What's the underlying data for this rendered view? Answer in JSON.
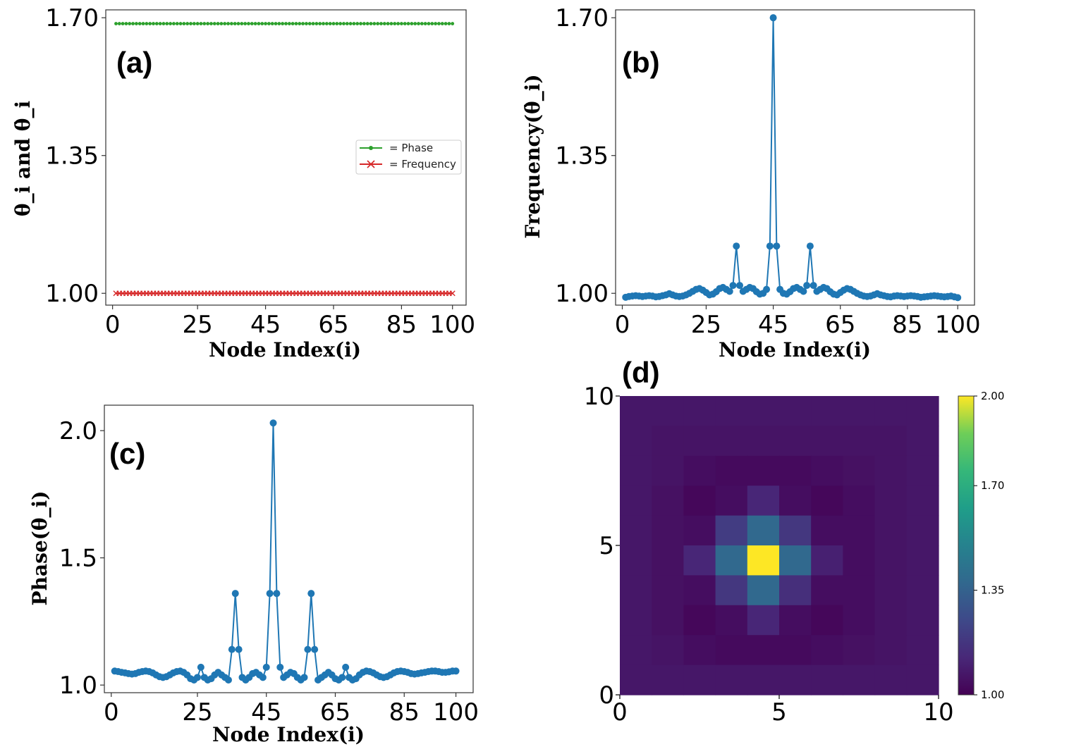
{
  "chart_data": [
    {
      "id": "a",
      "type": "line",
      "panel_label": "(a)",
      "xlabel": "Node Index(i)",
      "ylabel": "θ_i and θ̇_i",
      "xlim": [
        -2,
        104
      ],
      "ylim": [
        0.97,
        1.72
      ],
      "xticks": [
        0,
        25,
        45,
        65,
        85,
        100
      ],
      "xtick_labels": [
        "0",
        "25",
        "45",
        "65",
        "85",
        "100"
      ],
      "yticks": [
        1.0,
        1.35,
        1.7
      ],
      "ytick_labels": [
        "1.00",
        "1.35",
        "1.70"
      ],
      "legend": {
        "placement": "center-right",
        "entries": [
          "= Phase",
          "= Frequency"
        ]
      },
      "series": [
        {
          "name": "Phase",
          "color": "#2ca02c",
          "marker": "dot",
          "x_range": [
            1,
            100
          ],
          "constant_value": 1.685
        },
        {
          "name": "Frequency",
          "color": "#d62728",
          "marker": "x",
          "x_range": [
            1,
            100
          ],
          "constant_value": 1.0
        }
      ]
    },
    {
      "id": "b",
      "type": "line",
      "panel_label": "(b)",
      "xlabel": "Node Index(i)",
      "ylabel": "Frequency(θ̇_i)",
      "xlim": [
        -2,
        105
      ],
      "ylim": [
        0.97,
        1.72
      ],
      "xticks": [
        0,
        25,
        45,
        65,
        85,
        100
      ],
      "xtick_labels": [
        "0",
        "25",
        "45",
        "65",
        "85",
        "100"
      ],
      "yticks": [
        1.0,
        1.35,
        1.7
      ],
      "ytick_labels": [
        "1.00",
        "1.35",
        "1.70"
      ],
      "series": [
        {
          "name": "Frequency",
          "color": "#1f77b4",
          "x_range": [
            1,
            100
          ],
          "values": [
            0.99,
            0.992,
            0.993,
            0.994,
            0.993,
            0.992,
            0.993,
            0.994,
            0.993,
            0.991,
            0.992,
            0.994,
            0.996,
            0.999,
            0.996,
            0.993,
            0.992,
            0.993,
            0.996,
            1.0,
            1.005,
            1.01,
            1.012,
            1.008,
            1.002,
            0.996,
            0.998,
            1.004,
            1.012,
            1.015,
            1.01,
            1.005,
            1.02,
            1.12,
            1.02,
            1.005,
            1.01,
            1.015,
            1.012,
            1.004,
            0.998,
            1.0,
            1.01,
            1.12,
            1.7,
            1.12,
            1.01,
            1.0,
            0.998,
            1.004,
            1.012,
            1.015,
            1.01,
            1.005,
            1.02,
            1.12,
            1.02,
            1.005,
            1.01,
            1.015,
            1.012,
            1.004,
            0.998,
            0.996,
            1.002,
            1.008,
            1.012,
            1.01,
            1.005,
            1.0,
            0.996,
            0.993,
            0.992,
            0.993,
            0.996,
            0.999,
            0.996,
            0.994,
            0.992,
            0.991,
            0.993,
            0.994,
            0.993,
            0.992,
            0.993,
            0.994,
            0.993,
            0.992,
            0.99,
            0.991,
            0.992,
            0.993,
            0.994,
            0.993,
            0.992,
            0.991,
            0.992,
            0.993,
            0.991,
            0.989
          ]
        }
      ]
    },
    {
      "id": "c",
      "type": "line",
      "panel_label": "(c)",
      "xlabel": "Node Index(i)",
      "ylabel": "Phase(θ_i)",
      "xlim": [
        -2,
        105
      ],
      "ylim": [
        0.97,
        2.1
      ],
      "xticks": [
        0,
        25,
        45,
        65,
        85,
        100
      ],
      "xtick_labels": [
        "0",
        "25",
        "45",
        "65",
        "85",
        "100"
      ],
      "yticks": [
        1.0,
        1.5,
        2.0
      ],
      "ytick_labels": [
        "1.0",
        "1.5",
        "2.0"
      ],
      "series": [
        {
          "name": "Phase",
          "color": "#1f77b4",
          "x_range": [
            1,
            100
          ],
          "values": [
            1.055,
            1.053,
            1.05,
            1.048,
            1.045,
            1.043,
            1.045,
            1.05,
            1.053,
            1.055,
            1.053,
            1.048,
            1.04,
            1.033,
            1.03,
            1.033,
            1.04,
            1.048,
            1.053,
            1.055,
            1.05,
            1.04,
            1.025,
            1.02,
            1.03,
            1.07,
            1.03,
            1.02,
            1.025,
            1.04,
            1.05,
            1.04,
            1.03,
            1.02,
            1.14,
            1.36,
            1.14,
            1.03,
            1.02,
            1.03,
            1.045,
            1.05,
            1.04,
            1.03,
            1.07,
            1.36,
            2.03,
            1.36,
            1.07,
            1.03,
            1.04,
            1.05,
            1.045,
            1.03,
            1.02,
            1.03,
            1.14,
            1.36,
            1.14,
            1.02,
            1.03,
            1.04,
            1.05,
            1.04,
            1.025,
            1.02,
            1.03,
            1.07,
            1.03,
            1.02,
            1.025,
            1.04,
            1.05,
            1.055,
            1.053,
            1.048,
            1.04,
            1.033,
            1.03,
            1.033,
            1.04,
            1.048,
            1.053,
            1.055,
            1.053,
            1.05,
            1.045,
            1.043,
            1.045,
            1.048,
            1.05,
            1.053,
            1.055,
            1.055,
            1.053,
            1.05,
            1.05,
            1.052,
            1.055,
            1.055
          ]
        }
      ]
    },
    {
      "id": "d",
      "type": "heatmap",
      "panel_label": "(d)",
      "xlim": [
        0,
        10
      ],
      "ylim": [
        0,
        10
      ],
      "xticks": [
        0,
        5,
        10
      ],
      "xtick_labels": [
        "0",
        "5",
        "10"
      ],
      "yticks": [
        0,
        5,
        10
      ],
      "ytick_labels": [
        "0",
        "5",
        "10"
      ],
      "colorbar": {
        "range": [
          1.0,
          2.0
        ],
        "ticks": [
          1.0,
          1.35,
          1.7,
          2.0
        ],
        "tick_labels": [
          "1.00",
          "1.35",
          "1.70",
          "2.00"
        ],
        "colormap": "viridis"
      },
      "grid_rows_top_to_bottom": [
        [
          1.07,
          1.07,
          1.07,
          1.07,
          1.07,
          1.07,
          1.07,
          1.07,
          1.07,
          1.07
        ],
        [
          1.07,
          1.06,
          1.06,
          1.06,
          1.06,
          1.06,
          1.06,
          1.06,
          1.06,
          1.07
        ],
        [
          1.07,
          1.06,
          1.04,
          1.03,
          1.03,
          1.03,
          1.04,
          1.05,
          1.06,
          1.07
        ],
        [
          1.07,
          1.05,
          1.02,
          1.04,
          1.12,
          1.04,
          1.02,
          1.04,
          1.06,
          1.07
        ],
        [
          1.07,
          1.05,
          1.04,
          1.2,
          1.38,
          1.18,
          1.04,
          1.04,
          1.06,
          1.07
        ],
        [
          1.07,
          1.05,
          1.12,
          1.38,
          2.0,
          1.38,
          1.1,
          1.04,
          1.06,
          1.07
        ],
        [
          1.07,
          1.05,
          1.04,
          1.18,
          1.38,
          1.15,
          1.04,
          1.04,
          1.06,
          1.07
        ],
        [
          1.07,
          1.05,
          1.02,
          1.04,
          1.12,
          1.04,
          1.02,
          1.04,
          1.06,
          1.07
        ],
        [
          1.07,
          1.06,
          1.04,
          1.03,
          1.03,
          1.03,
          1.04,
          1.05,
          1.06,
          1.07
        ],
        [
          1.07,
          1.07,
          1.07,
          1.07,
          1.07,
          1.07,
          1.07,
          1.07,
          1.07,
          1.07
        ]
      ]
    }
  ]
}
